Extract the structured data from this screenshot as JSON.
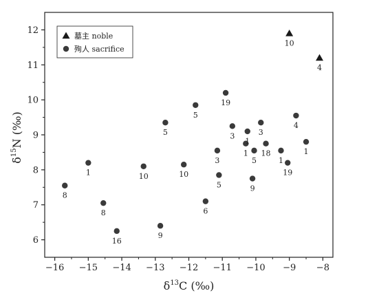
{
  "chart_data": {
    "type": "scatter",
    "xlabel": {
      "prefix": "δ",
      "sup": "13",
      "suffix": "C (‰)"
    },
    "ylabel": {
      "prefix": "δ",
      "sup": "15",
      "suffix": "N (‰)"
    },
    "xlim": [
      -16.3,
      -7.7
    ],
    "ylim": [
      5.5,
      12.5
    ],
    "xticks": [
      -16,
      -15,
      -14,
      -13,
      -12,
      -11,
      -10,
      -9,
      -8
    ],
    "yticks": [
      6,
      7,
      8,
      9,
      10,
      11,
      12
    ],
    "grid": false,
    "legend_position": "top-left",
    "series": [
      {
        "name": "墓主 noble",
        "marker": "triangle",
        "color": "#1a1a1a",
        "points": [
          {
            "x": -9.0,
            "y": 11.9,
            "label": "10"
          },
          {
            "x": -8.1,
            "y": 11.2,
            "label": "4"
          }
        ]
      },
      {
        "name": "殉人 sacrifice",
        "marker": "circle",
        "color": "#3a3a3a",
        "points": [
          {
            "x": -15.7,
            "y": 7.55,
            "label": "8"
          },
          {
            "x": -15.0,
            "y": 8.2,
            "label": "1"
          },
          {
            "x": -14.55,
            "y": 7.05,
            "label": "8"
          },
          {
            "x": -14.15,
            "y": 6.25,
            "label": "16"
          },
          {
            "x": -13.35,
            "y": 8.1,
            "label": "10"
          },
          {
            "x": -12.85,
            "y": 6.4,
            "label": "9"
          },
          {
            "x": -12.7,
            "y": 9.35,
            "label": "5"
          },
          {
            "x": -12.15,
            "y": 8.15,
            "label": "10"
          },
          {
            "x": -11.8,
            "y": 9.85,
            "label": "5"
          },
          {
            "x": -11.5,
            "y": 7.1,
            "label": "6"
          },
          {
            "x": -11.15,
            "y": 8.55,
            "label": "3"
          },
          {
            "x": -11.1,
            "y": 7.85,
            "label": "5"
          },
          {
            "x": -10.9,
            "y": 10.2,
            "label": "19"
          },
          {
            "x": -10.7,
            "y": 9.25,
            "label": "3"
          },
          {
            "x": -10.3,
            "y": 8.75,
            "label": "1"
          },
          {
            "x": -10.25,
            "y": 9.1,
            "label": "1"
          },
          {
            "x": -10.1,
            "y": 7.75,
            "label": "9"
          },
          {
            "x": -10.05,
            "y": 8.55,
            "label": "5"
          },
          {
            "x": -9.85,
            "y": 9.35,
            "label": "3"
          },
          {
            "x": -9.7,
            "y": 8.75,
            "label": "18"
          },
          {
            "x": -9.25,
            "y": 8.55,
            "label": "1"
          },
          {
            "x": -9.05,
            "y": 8.2,
            "label": "19"
          },
          {
            "x": -8.8,
            "y": 9.55,
            "label": "4"
          },
          {
            "x": -8.5,
            "y": 8.8,
            "label": "1"
          }
        ]
      }
    ]
  }
}
